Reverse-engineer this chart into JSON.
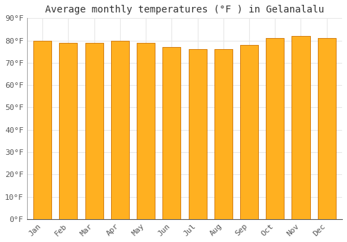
{
  "title": "Average monthly temperatures (°F ) in Gelanalalu",
  "months": [
    "Jan",
    "Feb",
    "Mar",
    "Apr",
    "May",
    "Jun",
    "Jul",
    "Aug",
    "Sep",
    "Oct",
    "Nov",
    "Dec"
  ],
  "values": [
    80,
    79,
    79,
    80,
    79,
    77,
    76,
    76,
    78,
    81,
    82,
    81
  ],
  "bar_color_top": "#FFB300",
  "bar_color_bottom": "#FF8C00",
  "bar_edge_color": "#CC7000",
  "background_color": "#FFFFFF",
  "plot_bg_color": "#FFFFFF",
  "ylim": [
    0,
    90
  ],
  "yticks": [
    0,
    10,
    20,
    30,
    40,
    50,
    60,
    70,
    80,
    90
  ],
  "ytick_labels": [
    "0°F",
    "10°F",
    "20°F",
    "30°F",
    "40°F",
    "50°F",
    "60°F",
    "70°F",
    "80°F",
    "90°F"
  ],
  "title_fontsize": 10,
  "tick_fontsize": 8,
  "grid_color": "#E8E8E8",
  "font_family": "monospace",
  "bar_width": 0.7
}
